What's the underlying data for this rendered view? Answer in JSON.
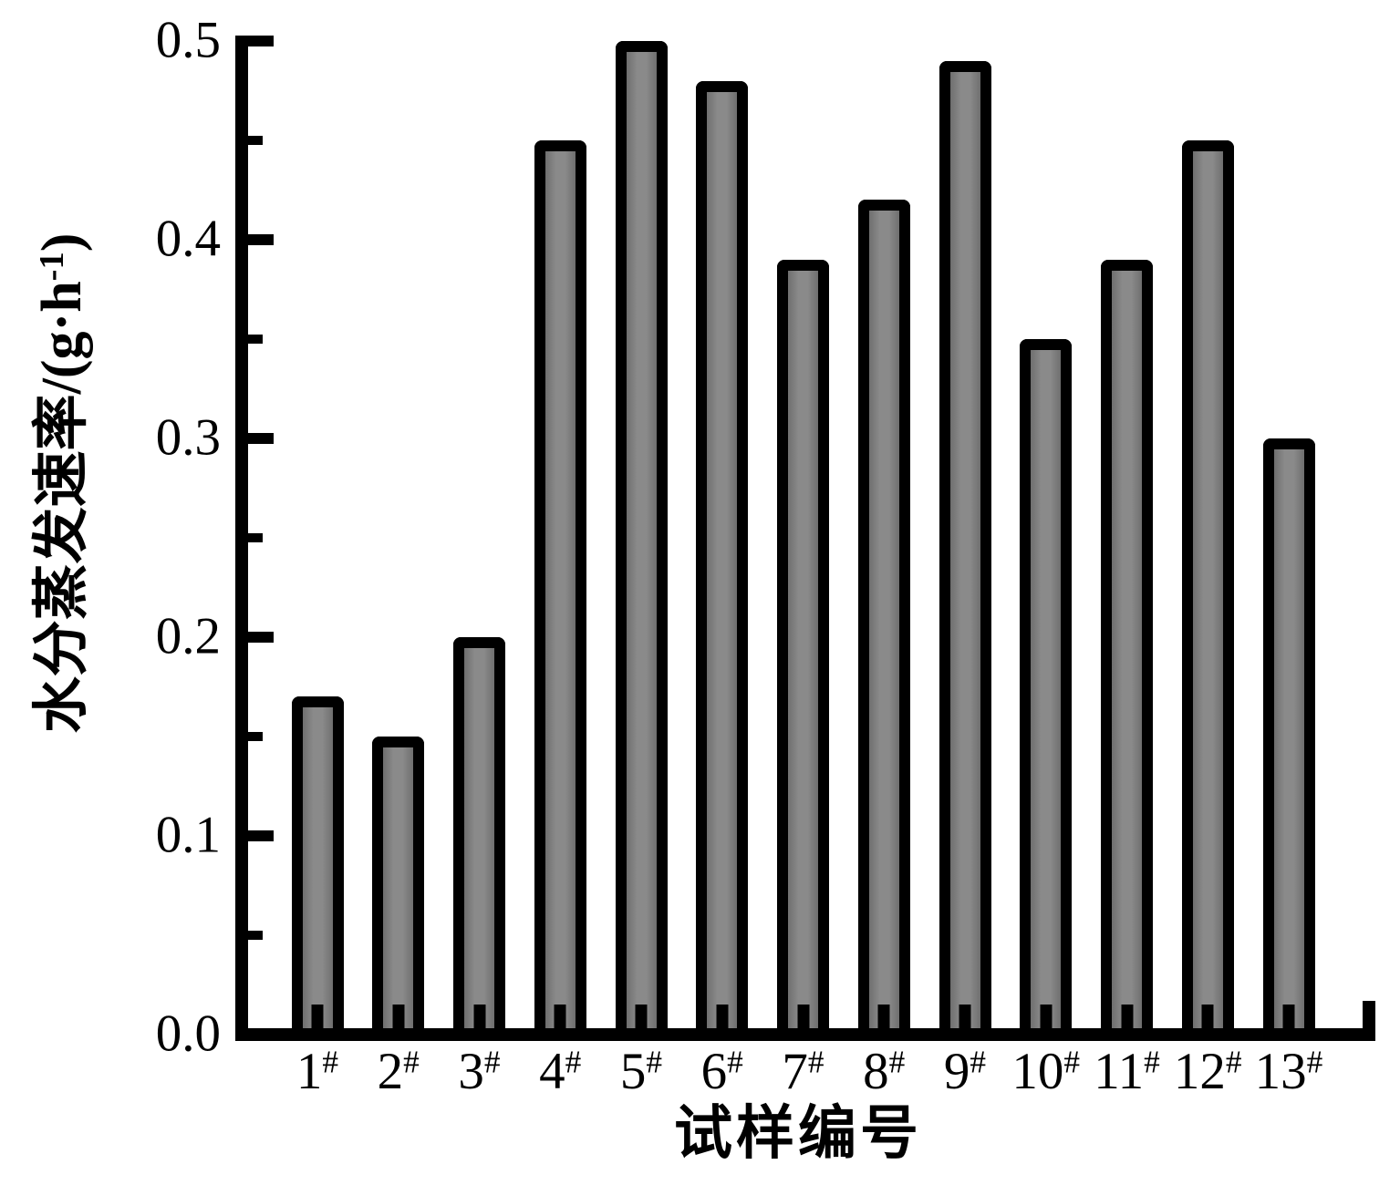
{
  "chart_data": {
    "type": "bar",
    "title": "",
    "xlabel": "试样编号",
    "ylabel": "水分蒸发速率/(g·h⁻¹)",
    "ylabel_parts": {
      "main": "水分蒸发速率/(g·h",
      "sup": "-1",
      "tail": ")"
    },
    "categories": [
      "1",
      "2",
      "3",
      "4",
      "5",
      "6",
      "7",
      "8",
      "9",
      "10",
      "11",
      "12",
      "13"
    ],
    "category_suffix": "#",
    "values": [
      0.17,
      0.15,
      0.2,
      0.45,
      0.5,
      0.48,
      0.39,
      0.42,
      0.49,
      0.35,
      0.39,
      0.45,
      0.3
    ],
    "ylim": [
      0.0,
      0.5
    ],
    "ytick_labels": [
      "0.0",
      "0.1",
      "0.2",
      "0.3",
      "0.4",
      "0.5"
    ],
    "yminor_ticks": [
      0.05,
      0.15,
      0.25,
      0.35,
      0.45
    ],
    "grid": false,
    "legend_position": "none",
    "bar_fill_color": "#808080",
    "bar_border_color": "#000000",
    "axis_color": "#000000",
    "background_color": "#ffffff"
  }
}
